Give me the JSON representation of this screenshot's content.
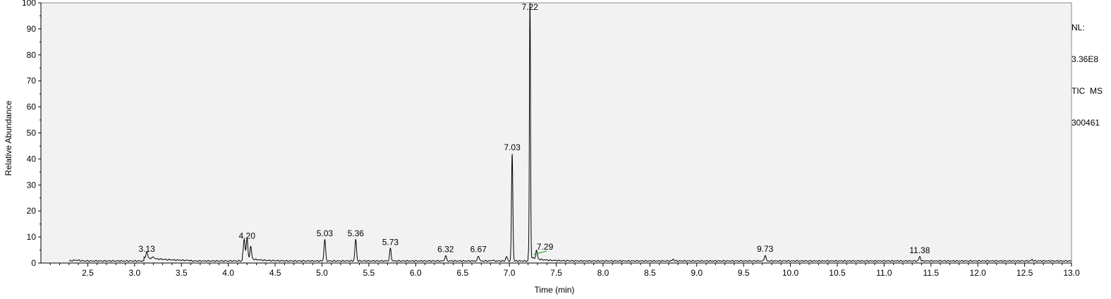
{
  "header": {
    "nl_label": "NL:",
    "nl_value": "3.36E8",
    "scan_filter": "TIC  MS",
    "file_name": "300461"
  },
  "colors": {
    "plot_background": "#f2f2f2",
    "trace": "#000000",
    "annotation_marker": "#2e9d2e"
  },
  "chart_data": {
    "type": "line",
    "title": "",
    "xlabel": "Time (min)",
    "ylabel": "Relative Abundance",
    "xlim": [
      2.0,
      13.0
    ],
    "ylim": [
      0,
      100
    ],
    "xticks": [
      "2.5",
      "3.0",
      "3.5",
      "4.0",
      "4.5",
      "5.0",
      "5.5",
      "6.0",
      "6.5",
      "7.0",
      "7.5",
      "8.0",
      "8.5",
      "9.0",
      "9.5",
      "10.0",
      "10.5",
      "11.0",
      "11.5",
      "12.0",
      "12.5",
      "13.0"
    ],
    "yticks": [
      "0",
      "10",
      "20",
      "30",
      "40",
      "50",
      "60",
      "70",
      "80",
      "90",
      "100"
    ],
    "grid": false,
    "trace_start": 2.3,
    "baseline": 0.8,
    "peak_labels": [
      "3.13",
      "4.20",
      "5.03",
      "5.36",
      "5.73",
      "6.32",
      "6.67",
      "7.03",
      "7.22",
      "7.29",
      "9.73",
      "11.38"
    ],
    "peaks": [
      {
        "rt": 3.13,
        "height": 3.0
      },
      {
        "rt": 3.2,
        "height": 1.5
      },
      {
        "rt": 4.17,
        "height": 7.5
      },
      {
        "rt": 4.2,
        "height": 8.0
      },
      {
        "rt": 4.24,
        "height": 5.5
      },
      {
        "rt": 5.03,
        "height": 9.0
      },
      {
        "rt": 5.36,
        "height": 9.0
      },
      {
        "rt": 5.73,
        "height": 5.5
      },
      {
        "rt": 6.32,
        "height": 2.8
      },
      {
        "rt": 6.67,
        "height": 2.8
      },
      {
        "rt": 6.82,
        "height": 1.2
      },
      {
        "rt": 6.97,
        "height": 2.5
      },
      {
        "rt": 7.03,
        "height": 42
      },
      {
        "rt": 7.22,
        "height": 100
      },
      {
        "rt": 7.29,
        "height": 4.0
      },
      {
        "rt": 8.75,
        "height": 1.5
      },
      {
        "rt": 9.73,
        "height": 3.0
      },
      {
        "rt": 11.38,
        "height": 2.5
      },
      {
        "rt": 12.58,
        "height": 1.3
      }
    ]
  }
}
